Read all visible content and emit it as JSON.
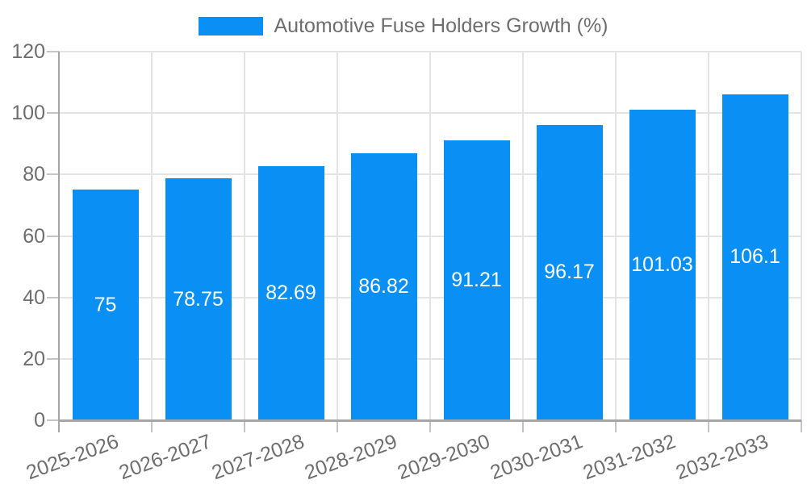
{
  "legend": {
    "label": "Automotive Fuse Holders Growth (%)"
  },
  "chart_data": {
    "type": "bar",
    "title": "Automotive Fuse Holders Growth (%)",
    "categories": [
      "2025-2026",
      "2026-2027",
      "2027-2028",
      "2028-2029",
      "2029-2030",
      "2030-2031",
      "2031-2032",
      "2032-2033"
    ],
    "values": [
      75,
      78.75,
      82.69,
      86.82,
      91.21,
      96.17,
      101.03,
      106.1
    ],
    "value_labels": [
      "75",
      "78.75",
      "82.69",
      "86.82",
      "91.21",
      "96.17",
      "101.03",
      "106.1"
    ],
    "yticks": [
      0,
      20,
      40,
      60,
      80,
      100,
      120
    ],
    "ylim": [
      0,
      120
    ],
    "xlabel": "",
    "ylabel": "",
    "grid": true,
    "legend_position": "top",
    "colors": {
      "bar": "#0A90F5",
      "grid": "#e4e4e4",
      "axis": "#a6a6a6",
      "tick": "#c4c4c4",
      "text": "#6e6e6e",
      "value_label": "#ffffff",
      "background": "#ffffff"
    }
  }
}
